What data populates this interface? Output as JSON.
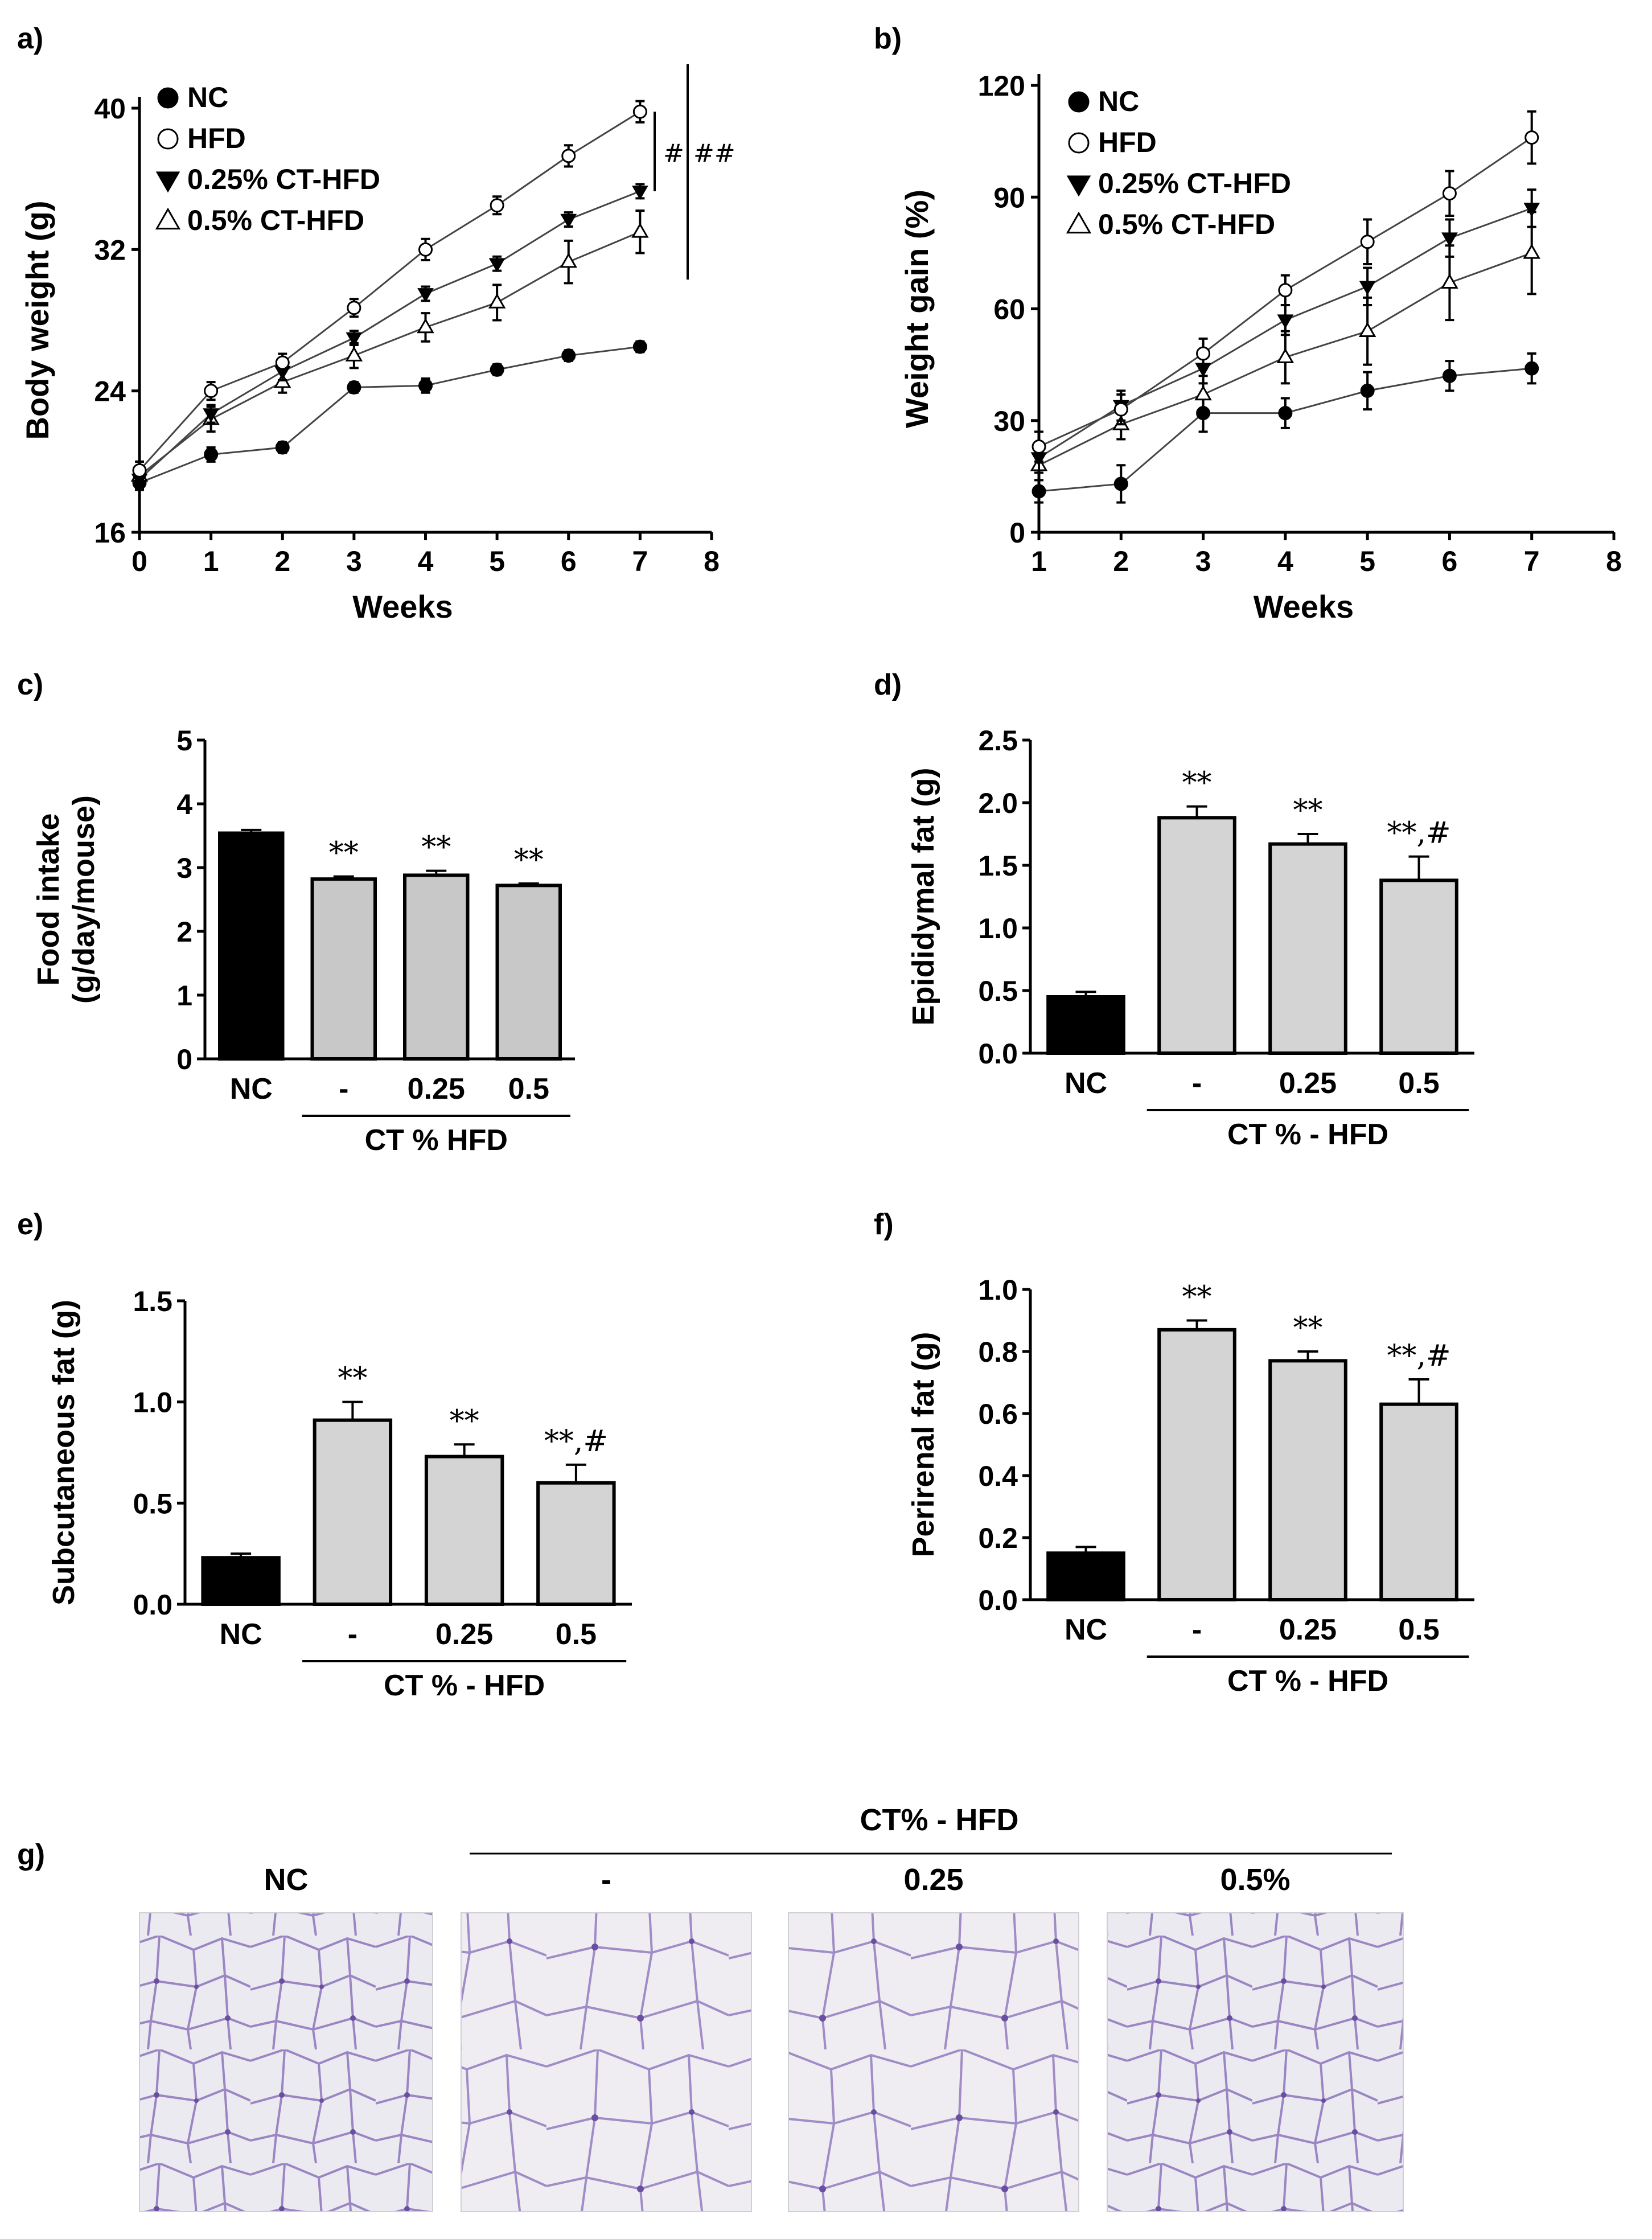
{
  "panels": [
    {
      "type": "line",
      "panel_label": "a)",
      "xlabel": "Weeks",
      "ylabel": "Body weight (g)",
      "xlim": [
        0,
        8
      ],
      "ylim": [
        16,
        40
      ],
      "x_ticks": [
        "0",
        "1",
        "2",
        "3",
        "4",
        "5",
        "6",
        "7",
        "8"
      ],
      "y_ticks": [
        "16",
        "24",
        "32",
        "40"
      ],
      "legend": [
        "NC",
        "HFD",
        "0.25% CT-HFD",
        "0.5% CT-HFD"
      ],
      "sig_labels": [
        "#",
        "##"
      ],
      "series": [
        {
          "name": "NC",
          "marker": "circle-filled",
          "x": [
            0,
            1,
            2,
            3,
            4,
            5,
            6,
            7
          ],
          "values": [
            18.8,
            20.4,
            20.8,
            24.2,
            24.3,
            25.2,
            26.0,
            26.5
          ],
          "err": [
            0.4,
            0.4,
            0.3,
            0.3,
            0.4,
            0.3,
            0.3,
            0.3
          ]
        },
        {
          "name": "HFD",
          "marker": "circle-open",
          "x": [
            0,
            1,
            2,
            3,
            4,
            5,
            6,
            7
          ],
          "values": [
            19.5,
            24.0,
            25.6,
            28.7,
            32.0,
            34.5,
            37.3,
            39.8
          ],
          "err": [
            0.5,
            0.5,
            0.5,
            0.5,
            0.6,
            0.5,
            0.6,
            0.6
          ]
        },
        {
          "name": "0.25% CT-HFD",
          "marker": "triangle-down-filled",
          "x": [
            0,
            1,
            2,
            3,
            4,
            5,
            6,
            7
          ],
          "values": [
            19.0,
            22.7,
            25.1,
            27.0,
            29.5,
            31.2,
            33.7,
            35.3
          ],
          "err": [
            0.5,
            0.5,
            0.5,
            0.4,
            0.4,
            0.4,
            0.4,
            0.4
          ]
        },
        {
          "name": "0.5% CT-HFD",
          "marker": "triangle-up-open",
          "x": [
            0,
            1,
            2,
            3,
            4,
            5,
            6,
            7
          ],
          "values": [
            19.2,
            22.4,
            24.5,
            26.0,
            27.6,
            29.0,
            31.3,
            33.0
          ],
          "err": [
            0.8,
            0.7,
            0.6,
            0.7,
            0.8,
            1.0,
            1.2,
            1.2
          ]
        }
      ]
    },
    {
      "type": "line",
      "panel_label": "b)",
      "xlabel": "Weeks",
      "ylabel": "Weight gain (%)",
      "xlim": [
        1,
        8
      ],
      "ylim": [
        0,
        120
      ],
      "x_ticks": [
        "1",
        "2",
        "3",
        "4",
        "5",
        "6",
        "7",
        "8"
      ],
      "y_ticks": [
        "0",
        "30",
        "60",
        "90",
        "120"
      ],
      "legend": [
        "NC",
        "HFD",
        "0.25% CT-HFD",
        "0.5% CT-HFD"
      ],
      "series": [
        {
          "name": "NC",
          "marker": "circle-filled",
          "x": [
            1,
            2,
            3,
            4,
            5,
            6,
            7
          ],
          "values": [
            11,
            13,
            32,
            32,
            38,
            42,
            44
          ],
          "err": [
            3,
            5,
            5,
            4,
            5,
            4,
            4
          ]
        },
        {
          "name": "HFD",
          "marker": "circle-open",
          "x": [
            1,
            2,
            3,
            4,
            5,
            6,
            7
          ],
          "values": [
            23,
            33,
            48,
            65,
            78,
            91,
            106
          ],
          "err": [
            4,
            4,
            4,
            4,
            6,
            6,
            7
          ]
        },
        {
          "name": "0.25% CT-HFD",
          "marker": "triangle-down-filled",
          "x": [
            1,
            2,
            3,
            4,
            5,
            6,
            7
          ],
          "values": [
            20,
            34,
            44,
            57,
            66,
            79,
            87
          ],
          "err": [
            4,
            4,
            4,
            4,
            5,
            5,
            5
          ]
        },
        {
          "name": "0.5% CT-HFD",
          "marker": "triangle-up-open",
          "x": [
            1,
            2,
            3,
            4,
            5,
            6,
            7
          ],
          "values": [
            18,
            29,
            37,
            47,
            54,
            67,
            75
          ],
          "err": [
            4,
            4,
            5,
            7,
            9,
            10,
            11
          ]
        }
      ]
    },
    {
      "type": "bar",
      "panel_label": "c)",
      "ylabel_lines": [
        "Food intake",
        "(g/day/mouse)"
      ],
      "ylim": [
        0,
        5
      ],
      "y_ticks": [
        "0",
        "1",
        "2",
        "3",
        "4",
        "5"
      ],
      "categories": [
        "NC",
        "-",
        "0.25",
        "0.5"
      ],
      "group_label": "CT %   HFD",
      "values": [
        3.54,
        2.82,
        2.88,
        2.72
      ],
      "err": [
        0.05,
        0.04,
        0.07,
        0.03
      ],
      "colors": [
        "#000000",
        "#c8c8c8",
        "#c8c8c8",
        "#c8c8c8"
      ],
      "annotations": [
        "",
        "**",
        "**",
        "**"
      ]
    },
    {
      "type": "bar",
      "panel_label": "d)",
      "ylabel": "Epididymal fat (g)",
      "ylim": [
        0,
        2.5
      ],
      "y_ticks": [
        "0.0",
        "0.5",
        "1.0",
        "1.5",
        "2.0",
        "2.5"
      ],
      "categories": [
        "NC",
        "-",
        "0.25",
        "0.5"
      ],
      "group_label": "CT % - HFD",
      "values": [
        0.45,
        1.88,
        1.67,
        1.38
      ],
      "err": [
        0.04,
        0.09,
        0.08,
        0.19
      ],
      "colors": [
        "#000000",
        "#d4d4d4",
        "#d4d4d4",
        "#d4d4d4"
      ],
      "annotations": [
        "",
        "**",
        "**",
        "**,#"
      ]
    },
    {
      "type": "bar",
      "panel_label": "e)",
      "ylabel": "Subcutaneous fat (g)",
      "ylim": [
        0,
        1.5
      ],
      "y_ticks": [
        "0.0",
        "0.5",
        "1.0",
        "1.5"
      ],
      "categories": [
        "NC",
        "-",
        "0.25",
        "0.5"
      ],
      "group_label": "CT % - HFD",
      "values": [
        0.23,
        0.91,
        0.73,
        0.6
      ],
      "err": [
        0.02,
        0.09,
        0.06,
        0.09
      ],
      "colors": [
        "#000000",
        "#d4d4d4",
        "#d4d4d4",
        "#d4d4d4"
      ],
      "annotations": [
        "",
        "**",
        "**",
        "**,#"
      ]
    },
    {
      "type": "bar",
      "panel_label": "f)",
      "ylabel": "Perirenal fat (g)",
      "ylim": [
        0,
        1.0
      ],
      "y_ticks": [
        "0.0",
        "0.2",
        "0.4",
        "0.6",
        "0.8",
        "1.0"
      ],
      "categories": [
        "NC",
        "-",
        "0.25",
        "0.5"
      ],
      "group_label": "CT % - HFD",
      "values": [
        0.15,
        0.87,
        0.77,
        0.63
      ],
      "err": [
        0.02,
        0.03,
        0.03,
        0.08
      ],
      "colors": [
        "#000000",
        "#d4d4d4",
        "#d4d4d4",
        "#d4d4d4"
      ],
      "annotations": [
        "",
        "**",
        "**",
        "**,#"
      ]
    }
  ],
  "histology": {
    "panel_label": "g)",
    "group_header": "CT% - HFD",
    "columns": [
      "NC",
      "-",
      "0.25",
      "0.5%"
    ]
  }
}
